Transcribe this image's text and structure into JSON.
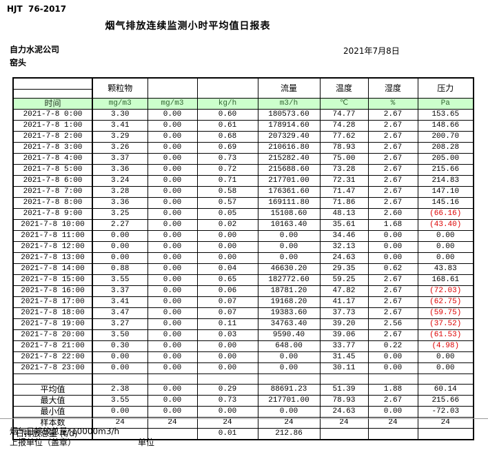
{
  "page": {
    "standard_code": "HJT  76-2017",
    "title": "烟气排放连续监测小时平均值日报表",
    "company": "自力水泥公司",
    "station": "窑头",
    "date": "2021年7月8日"
  },
  "colors": {
    "header_green": "#ccffcc",
    "negative_red": "#dd0000"
  },
  "table": {
    "group_headers": [
      "",
      "颗粒物",
      "",
      "",
      "流量",
      "温度",
      "湿度",
      "压力"
    ],
    "time_label": "时间",
    "units": [
      "mg/m3",
      "mg/m3",
      "kg/h",
      "m3/h",
      "℃",
      "%",
      "Pa"
    ],
    "rows": [
      {
        "time": "2021-7-8 0:00",
        "values": [
          "3.30",
          "0.00",
          "0.60",
          "180573.60",
          "74.77",
          "2.67",
          "153.65"
        ]
      },
      {
        "time": "2021-7-8 1:00",
        "values": [
          "3.41",
          "0.00",
          "0.61",
          "178914.60",
          "74.28",
          "2.67",
          "148.66"
        ]
      },
      {
        "time": "2021-7-8 2:00",
        "values": [
          "3.29",
          "0.00",
          "0.68",
          "207329.40",
          "77.62",
          "2.67",
          "200.70"
        ]
      },
      {
        "time": "2021-7-8 3:00",
        "values": [
          "3.26",
          "0.00",
          "0.69",
          "210616.80",
          "78.93",
          "2.67",
          "208.28"
        ]
      },
      {
        "time": "2021-7-8 4:00",
        "values": [
          "3.37",
          "0.00",
          "0.73",
          "215282.40",
          "75.00",
          "2.67",
          "205.00"
        ]
      },
      {
        "time": "2021-7-8 5:00",
        "values": [
          "3.36",
          "0.00",
          "0.72",
          "215688.60",
          "73.28",
          "2.67",
          "215.66"
        ]
      },
      {
        "time": "2021-7-8 6:00",
        "values": [
          "3.24",
          "0.00",
          "0.71",
          "217701.00",
          "72.31",
          "2.67",
          "214.83"
        ]
      },
      {
        "time": "2021-7-8 7:00",
        "values": [
          "3.28",
          "0.00",
          "0.58",
          "176361.60",
          "71.47",
          "2.67",
          "147.10"
        ]
      },
      {
        "time": "2021-7-8 8:00",
        "values": [
          "3.36",
          "0.00",
          "0.57",
          "169111.80",
          "71.86",
          "2.67",
          "145.16"
        ]
      },
      {
        "time": "2021-7-8 9:00",
        "values": [
          "3.25",
          "0.00",
          "0.05",
          "15108.60",
          "48.13",
          "2.60",
          "(66.16)"
        ]
      },
      {
        "time": "2021-7-8 10:00",
        "values": [
          "2.27",
          "0.00",
          "0.02",
          "10163.40",
          "35.61",
          "1.68",
          "(43.40)"
        ]
      },
      {
        "time": "2021-7-8 11:00",
        "values": [
          "0.00",
          "0.00",
          "0.00",
          "0.00",
          "34.46",
          "0.00",
          "0.00"
        ]
      },
      {
        "time": "2021-7-8 12:00",
        "values": [
          "0.00",
          "0.00",
          "0.00",
          "0.00",
          "32.13",
          "0.00",
          "0.00"
        ]
      },
      {
        "time": "2021-7-8 13:00",
        "values": [
          "0.00",
          "0.00",
          "0.00",
          "0.00",
          "24.63",
          "0.00",
          "0.00"
        ]
      },
      {
        "time": "2021-7-8 14:00",
        "values": [
          "0.88",
          "0.00",
          "0.04",
          "46630.20",
          "29.35",
          "0.62",
          "43.83"
        ]
      },
      {
        "time": "2021-7-8 15:00",
        "values": [
          "3.55",
          "0.00",
          "0.65",
          "182772.60",
          "59.25",
          "2.67",
          "168.61"
        ]
      },
      {
        "time": "2021-7-8 16:00",
        "values": [
          "3.37",
          "0.00",
          "0.06",
          "18781.20",
          "47.82",
          "2.67",
          "(72.03)"
        ]
      },
      {
        "time": "2021-7-8 17:00",
        "values": [
          "3.41",
          "0.00",
          "0.07",
          "19168.20",
          "41.17",
          "2.67",
          "(62.75)"
        ]
      },
      {
        "time": "2021-7-8 18:00",
        "values": [
          "3.47",
          "0.00",
          "0.07",
          "19383.60",
          "37.73",
          "2.67",
          "(59.75)"
        ]
      },
      {
        "time": "2021-7-8 19:00",
        "values": [
          "3.27",
          "0.00",
          "0.11",
          "34763.40",
          "39.20",
          "2.56",
          "(37.52)"
        ]
      },
      {
        "time": "2021-7-8 20:00",
        "values": [
          "3.50",
          "0.00",
          "0.03",
          "9590.40",
          "39.06",
          "2.67",
          "(61.53)"
        ]
      },
      {
        "time": "2021-7-8 21:00",
        "values": [
          "0.30",
          "0.00",
          "0.00",
          "648.00",
          "33.77",
          "0.22",
          "(4.98)"
        ]
      },
      {
        "time": "2021-7-8 22:00",
        "values": [
          "0.00",
          "0.00",
          "0.00",
          "0.00",
          "31.45",
          "0.00",
          "0.00"
        ]
      },
      {
        "time": "2021-7-8 23:00",
        "values": [
          "0.00",
          "0.00",
          "0.00",
          "0.00",
          "30.11",
          "0.00",
          "0.00"
        ]
      }
    ],
    "summary_rows": [
      {
        "label": "平均值",
        "values": [
          "2.38",
          "0.00",
          "0.29",
          "88691.23",
          "51.39",
          "1.88",
          "60.14"
        ]
      },
      {
        "label": "最大值",
        "values": [
          "3.55",
          "0.00",
          "0.73",
          "217701.00",
          "78.93",
          "2.67",
          "215.66"
        ]
      },
      {
        "label": "最小值",
        "values": [
          "0.00",
          "0.00",
          "0.00",
          "0.00",
          "24.63",
          "0.00",
          "-72.03"
        ]
      },
      {
        "label": "样本数",
        "values": [
          "24",
          "24",
          "24",
          "24",
          "24",
          "24",
          "24"
        ]
      }
    ],
    "total_row": {
      "label": "日排放总量 (t/d)",
      "values": [
        "",
        "",
        "0.01",
        "212.86",
        "",
        "",
        ""
      ]
    }
  },
  "footer": {
    "note": "烟气日排放总量*10000m3/h",
    "report_unit": "上报单位（盖章）",
    "unit_label": "单位"
  }
}
